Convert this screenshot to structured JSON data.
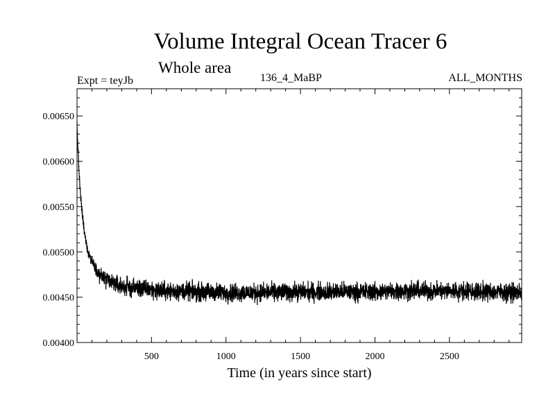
{
  "chart_data": {
    "type": "line",
    "title": "Volume Integral Ocean Tracer 6",
    "subtitle": "Whole area",
    "annotations": {
      "experiment": "Expt = teyJb",
      "run": "136_4_MaBP",
      "period": "ALL_MONTHS"
    },
    "xlabel": "Time (in years since start)",
    "ylabel": "",
    "xlim": [
      0,
      2985
    ],
    "ylim": [
      0.004,
      0.0068
    ],
    "xticks": [
      500,
      1000,
      1500,
      2000,
      2500
    ],
    "xtick_labels": [
      "500",
      "1000",
      "1500",
      "2000",
      "2500"
    ],
    "yticks": [
      0.004,
      0.0045,
      0.005,
      0.0055,
      0.006,
      0.0065
    ],
    "ytick_labels": [
      "0.00400",
      "0.00450",
      "0.00500",
      "0.00550",
      "0.00600",
      "0.00650"
    ],
    "grid": false,
    "series": [
      {
        "x": [
          0,
          5,
          10,
          20,
          30,
          40,
          50,
          75,
          100,
          125,
          150,
          200,
          250,
          300,
          400,
          500,
          600,
          800,
          1000,
          1200,
          1500,
          1800,
          2000,
          2200,
          2500,
          2800,
          2985
        ],
        "y": [
          0.0064,
          0.0062,
          0.006,
          0.0057,
          0.0055,
          0.00535,
          0.0052,
          0.005,
          0.0049,
          0.00482,
          0.00475,
          0.00468,
          0.00465,
          0.00462,
          0.0046,
          0.00458,
          0.00457,
          0.00456,
          0.00455,
          0.00455,
          0.00456,
          0.00456,
          0.00456,
          0.00457,
          0.00457,
          0.00456,
          0.00455
        ],
        "noise_amplitude": 0.0001,
        "color": "#000000"
      }
    ]
  }
}
